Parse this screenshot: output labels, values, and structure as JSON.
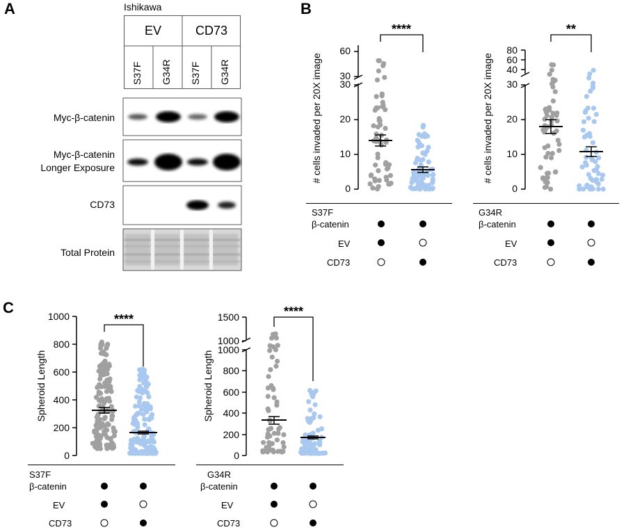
{
  "panel_a": {
    "letter": "A",
    "cell_line": "Ishikawa",
    "groups": [
      "EV",
      "CD73"
    ],
    "lanes": [
      "S37F",
      "G34R",
      "S37F",
      "G34R"
    ],
    "blots": [
      {
        "label": "Myc-β-catenin",
        "bands": [
          0.35,
          1.0,
          0.35,
          1.0
        ]
      },
      {
        "label": "Myc-β-catenin\nLonger Exposure",
        "bands": [
          0.8,
          1.0,
          0.8,
          1.0
        ]
      },
      {
        "label": "CD73",
        "bands": [
          0.0,
          0.0,
          0.95,
          0.7
        ]
      },
      {
        "label": "Total Protein",
        "bands": [
          1,
          1,
          1,
          1
        ]
      }
    ]
  },
  "panel_b": {
    "letter": "B",
    "significance_left": "****",
    "significance_right": "**"
  },
  "panel_c": {
    "letter": "C",
    "significance_left": "****",
    "significance_right": "****"
  },
  "conditions": {
    "row_labels": [
      "β-catenin",
      "EV",
      "CD73"
    ],
    "mutant_s37f": "S37F",
    "mutant_g34r": "G34R",
    "rows": [
      [
        true,
        true
      ],
      [
        true,
        false
      ],
      [
        false,
        true
      ]
    ]
  },
  "colors": {
    "gray": "#a0a0a0",
    "blue": "#a9c8f0",
    "black": "#000000"
  },
  "chart_data": [
    {
      "type": "scatter",
      "panel": "B-left",
      "ylabel": "# cells invaded per 20X image",
      "y_ticks": [
        0,
        10,
        20,
        30,
        60
      ],
      "y_break": [
        30,
        30
      ],
      "categories": [
        "EV",
        "CD73"
      ],
      "series": [
        {
          "name": "EV",
          "mean": 14,
          "sem": 1.6
        },
        {
          "name": "CD73",
          "mean": 5.5,
          "sem": 0.7
        }
      ],
      "significance": "****"
    },
    {
      "type": "scatter",
      "panel": "B-right",
      "ylabel": "# cells invaded per 20X image",
      "y_ticks": [
        0,
        10,
        20,
        30,
        40,
        60,
        80
      ],
      "categories": [
        "EV",
        "CD73"
      ],
      "series": [
        {
          "name": "EV",
          "mean": 18,
          "sem": 2.0
        },
        {
          "name": "CD73",
          "mean": 11,
          "sem": 1.4
        }
      ],
      "significance": "**"
    },
    {
      "type": "scatter",
      "panel": "C-left",
      "ylabel": "Spheroid Length",
      "y_ticks": [
        0,
        200,
        400,
        600,
        800,
        1000
      ],
      "categories": [
        "EV",
        "CD73"
      ],
      "series": [
        {
          "name": "EV",
          "mean": 325,
          "sem": 15
        },
        {
          "name": "CD73",
          "mean": 165,
          "sem": 8
        }
      ],
      "significance": "****"
    },
    {
      "type": "scatter",
      "panel": "C-right",
      "ylabel": "Spheroid Length",
      "y_ticks": [
        0,
        200,
        400,
        600,
        800,
        1000,
        1500
      ],
      "categories": [
        "EV",
        "CD73"
      ],
      "series": [
        {
          "name": "EV",
          "mean": 335,
          "sem": 30
        },
        {
          "name": "CD73",
          "mean": 170,
          "sem": 10
        }
      ],
      "significance": "****"
    }
  ]
}
